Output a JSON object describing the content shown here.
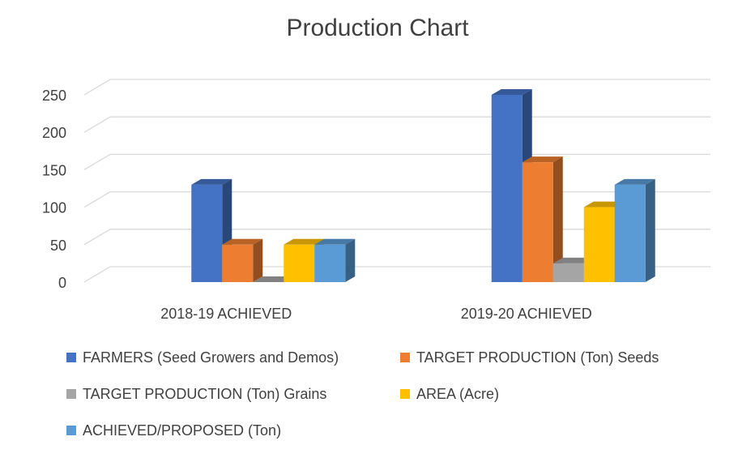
{
  "chart_data": {
    "type": "bar",
    "title": "Production Chart",
    "categories": [
      "2018-19 ACHIEVED",
      "2019-20 ACHIEVED"
    ],
    "series": [
      {
        "name": "FARMERS (Seed Growers and Demos)",
        "values": [
          130,
          250
        ],
        "color": "#4472C4"
      },
      {
        "name": "TARGET PRODUCTION (Ton) Seeds",
        "values": [
          50,
          160
        ],
        "color": "#ED7D31"
      },
      {
        "name": "TARGET PRODUCTION (Ton) Grains",
        "values": [
          0,
          25
        ],
        "color": "#A5A5A5"
      },
      {
        "name": "AREA (Acre)",
        "values": [
          50,
          100
        ],
        "color": "#FFC000"
      },
      {
        "name": "ACHIEVED/PROPOSED (Ton)",
        "values": [
          50,
          130
        ],
        "color": "#5B9BD5"
      }
    ],
    "ylim": [
      0,
      250
    ],
    "yticks": [
      0,
      50,
      100,
      150,
      200,
      250
    ],
    "grid": true,
    "legend_position": "bottom",
    "xlabel": "",
    "ylabel": ""
  }
}
